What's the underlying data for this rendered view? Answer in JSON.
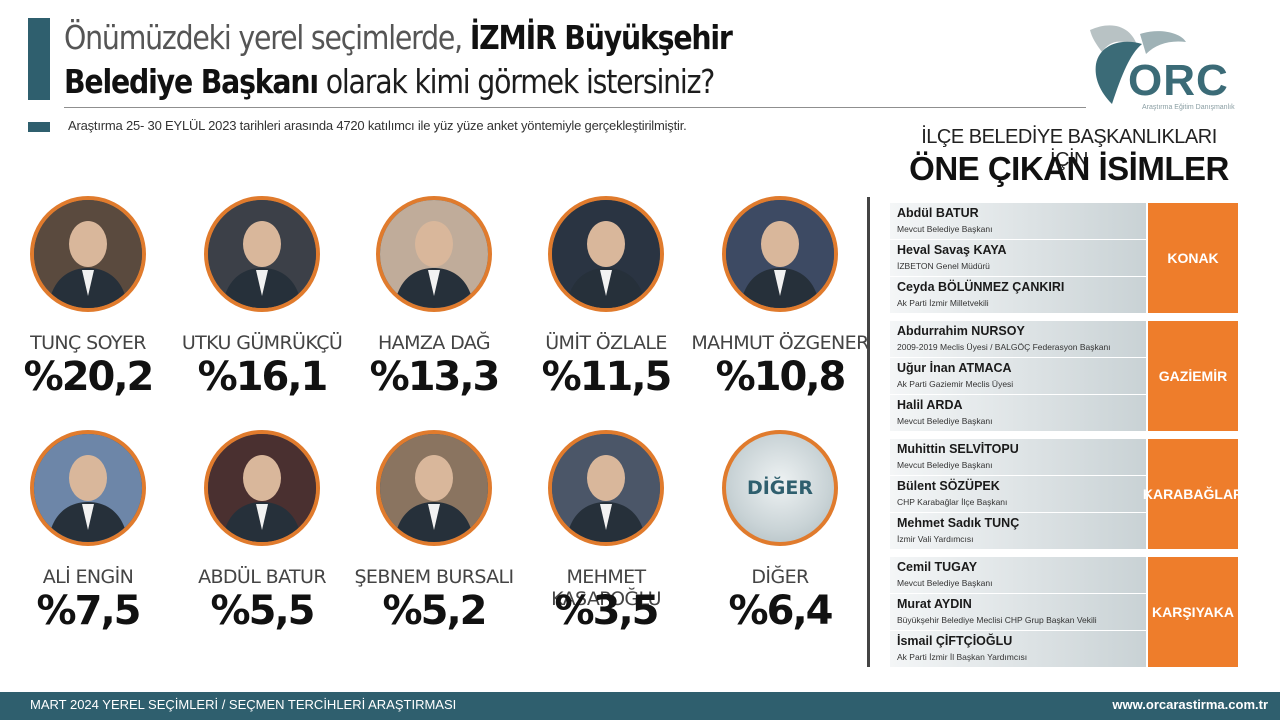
{
  "header": {
    "title_part1": "Önümüzdeki yerel seçimlerde, ",
    "title_bold1": "İZMİR Büyükşehir",
    "title_bold2": "Belediye Başkanı",
    "title_part2": " olarak kimi görmek istersiniz?",
    "subtitle": "Araştırma 25- 30 EYLÜL 2023 tarihleri arasında 4720 katılımcı ile yüz yüze anket yöntemiyle gerçekleştirilmiştir."
  },
  "logo": {
    "text": "ORC",
    "tagline": "Araştırma Eğitim Danışmanlık"
  },
  "colors": {
    "accent": "#2f5f6e",
    "orange": "#ee7d2b",
    "ring": "#e07b2d"
  },
  "chart_data": {
    "type": "table",
    "categories": [
      "TUNÇ SOYER",
      "UTKU GÜMRÜKÇÜ",
      "HAMZA DAĞ",
      "ÜMİT ÖZLALE",
      "MAHMUT ÖZGENER",
      "ALİ ENGİN",
      "ABDÜL BATUR",
      "ŞEBNEM BURSALI",
      "MEHMET KASAPOĞLU",
      "DİĞER"
    ],
    "values": [
      20.2,
      16.1,
      13.3,
      11.5,
      10.8,
      7.5,
      5.5,
      5.2,
      3.5,
      6.4
    ],
    "labels": [
      "%20,2",
      "%16,1",
      "%13,3",
      "%11,5",
      "%10,8",
      "%7,5",
      "%5,5",
      "%5,2",
      "%3,5",
      "%6,4"
    ],
    "circle_label": "DİĞER"
  },
  "ilce": {
    "heading1": "İLÇE BELEDİYE BAŞKANLIKLARI İÇİN",
    "heading2": "ÖNE ÇIKAN İSİMLER",
    "groups": [
      {
        "district": "KONAK",
        "rows": [
          {
            "name": "Abdül BATUR",
            "title": "Mevcut Belediye Başkanı"
          },
          {
            "name": "Heval Savaş KAYA",
            "title": "İZBETON Genel Müdürü"
          },
          {
            "name": "Ceyda BÖLÜNMEZ ÇANKIRI",
            "title": "Ak Parti İzmir Milletvekili"
          }
        ]
      },
      {
        "district": "GAZİEMİR",
        "rows": [
          {
            "name": "Abdurrahim NURSOY",
            "title": "2009-2019 Meclis Üyesi / BALGÖÇ Federasyon Başkanı"
          },
          {
            "name": "Uğur İnan ATMACA",
            "title": "Ak Parti Gaziemir Meclis Üyesi"
          },
          {
            "name": "Halil ARDA",
            "title": "Mevcut Belediye Başkanı"
          }
        ]
      },
      {
        "district": "KARABAĞLAR",
        "rows": [
          {
            "name": "Muhittin SELVİTOPU",
            "title": "Mevcut Belediye Başkanı"
          },
          {
            "name": "Bülent SÖZÜPEK",
            "title": "CHP Karabağlar İlçe Başkanı"
          },
          {
            "name": "Mehmet Sadık TUNÇ",
            "title": "İzmir Vali Yardımcısı"
          }
        ]
      },
      {
        "district": "KARŞIYAKA",
        "rows": [
          {
            "name": "Cemil TUGAY",
            "title": "Mevcut Belediye Başkanı"
          },
          {
            "name": "Murat AYDIN",
            "title": "Büyükşehir Belediye Meclisi CHP Grup Başkan Vekili"
          },
          {
            "name": "İsmail ÇİFTÇİOĞLU",
            "title": "Ak Parti İzmir İl Başkan Yardımcısı"
          }
        ]
      }
    ]
  },
  "footer": {
    "left": "MART 2024 YEREL SEÇİMLERİ / SEÇMEN TERCİHLERİ ARAŞTIRMASI",
    "right": "www.orcarastirma.com.tr"
  }
}
